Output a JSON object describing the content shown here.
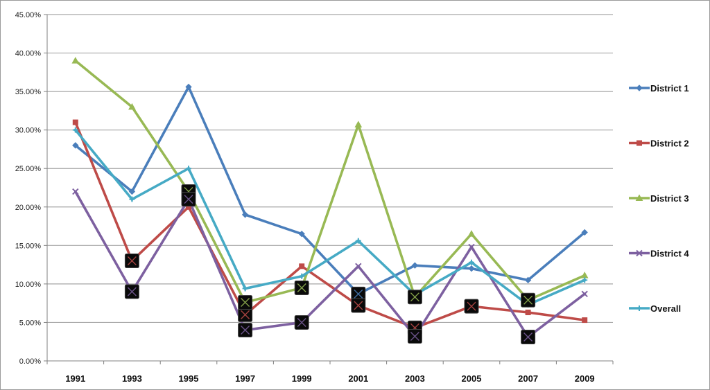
{
  "chart_data": {
    "type": "line",
    "title": "",
    "xlabel": "",
    "ylabel": "",
    "categories": [
      "1991",
      "1993",
      "1995",
      "1997",
      "1999",
      "2001",
      "2003",
      "2005",
      "2007",
      "2009"
    ],
    "ylim": [
      0,
      45
    ],
    "yticks": [
      "0.00%",
      "5.00%",
      "10.00%",
      "15.00%",
      "20.00%",
      "25.00%",
      "30.00%",
      "35.00%",
      "40.00%",
      "45.00%"
    ],
    "grid": true,
    "legend_position": "right",
    "series": [
      {
        "name": "District 1",
        "color": "#4a7ebb",
        "marker": "diamond",
        "values": [
          28.0,
          22.0,
          35.6,
          19.0,
          16.5,
          8.7,
          12.4,
          12.0,
          10.5,
          16.7
        ]
      },
      {
        "name": "District 2",
        "color": "#be4b48",
        "marker": "square",
        "values": [
          31.0,
          13.0,
          20.0,
          6.0,
          12.3,
          7.2,
          4.3,
          7.1,
          6.3,
          5.3
        ]
      },
      {
        "name": "District 3",
        "color": "#98b954",
        "marker": "triangle",
        "values": [
          39.0,
          33.0,
          22.0,
          7.6,
          9.5,
          30.7,
          8.3,
          16.5,
          7.9,
          11.1
        ]
      },
      {
        "name": "District 4",
        "color": "#7d60a0",
        "marker": "x",
        "values": [
          22.0,
          9.0,
          21.0,
          4.0,
          5.0,
          12.3,
          3.2,
          14.8,
          3.1,
          8.7
        ]
      },
      {
        "name": "Overall",
        "color": "#46aac5",
        "marker": "star",
        "values": [
          30.0,
          21.0,
          25.0,
          9.4,
          11.0,
          15.6,
          8.6,
          12.8,
          7.3,
          10.5
        ]
      }
    ],
    "highlighted_points": [
      {
        "series": "District 2",
        "category": "1993"
      },
      {
        "series": "District 4",
        "category": "1993"
      },
      {
        "series": "District 3",
        "category": "1995"
      },
      {
        "series": "District 4",
        "category": "1995"
      },
      {
        "series": "District 2",
        "category": "1997"
      },
      {
        "series": "District 3",
        "category": "1997"
      },
      {
        "series": "District 4",
        "category": "1997"
      },
      {
        "series": "District 3",
        "category": "1999"
      },
      {
        "series": "District 4",
        "category": "1999"
      },
      {
        "series": "District 1",
        "category": "2001"
      },
      {
        "series": "District 2",
        "category": "2001"
      },
      {
        "series": "District 2",
        "category": "2003"
      },
      {
        "series": "District 3",
        "category": "2003"
      },
      {
        "series": "District 4",
        "category": "2003"
      },
      {
        "series": "District 2",
        "category": "2005"
      },
      {
        "series": "District 3",
        "category": "2007"
      },
      {
        "series": "District 4",
        "category": "2007"
      }
    ]
  }
}
